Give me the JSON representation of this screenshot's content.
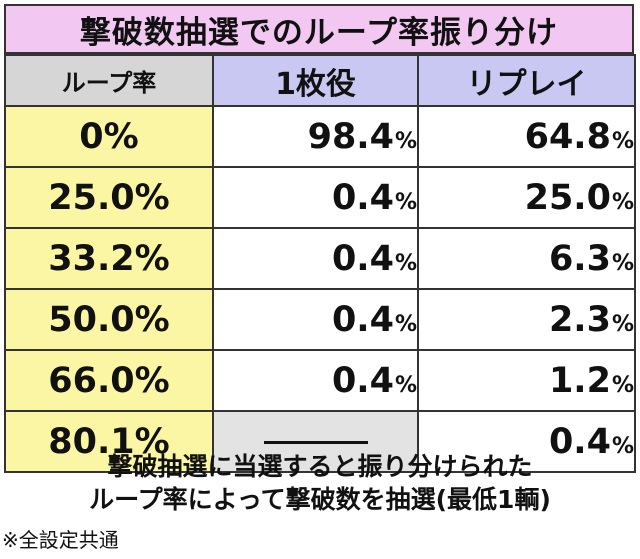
{
  "title": "撃破数抽選でのループ率振り分け",
  "table": {
    "headers": {
      "loop_rate": "ループ率",
      "one_mai": "1枚役",
      "replay": "リプレイ"
    },
    "rows": [
      {
        "rate": "0%",
        "one_mai": "98.4",
        "one_mai_unit": "%",
        "replay": "64.8",
        "replay_unit": "%"
      },
      {
        "rate": "25.0%",
        "one_mai": "0.4",
        "one_mai_unit": "%",
        "replay": "25.0",
        "replay_unit": "%"
      },
      {
        "rate": "33.2%",
        "one_mai": "0.4",
        "one_mai_unit": "%",
        "replay": "6.3",
        "replay_unit": "%"
      },
      {
        "rate": "50.0%",
        "one_mai": "0.4",
        "one_mai_unit": "%",
        "replay": "2.3",
        "replay_unit": "%"
      },
      {
        "rate": "66.0%",
        "one_mai": "0.4",
        "one_mai_unit": "%",
        "replay": "1.2",
        "replay_unit": "%"
      },
      {
        "rate": "80.1%",
        "one_mai": "",
        "one_mai_unit": "",
        "replay": "0.4",
        "replay_unit": "%"
      }
    ]
  },
  "caption": {
    "line1": "撃破抽選に当選すると振り分けられた",
    "line2": "ループ率によって撃破数を抽選(最低1輌)"
  },
  "note": "※全設定共通",
  "colors": {
    "title_bg": "#f2c8f3",
    "header_loop_bg": "#d6d6d6",
    "header_cat_bg": "#c9c8f3",
    "rate_bg": "#fbf6a4",
    "empty_cell_bg": "#e3e3e3"
  }
}
